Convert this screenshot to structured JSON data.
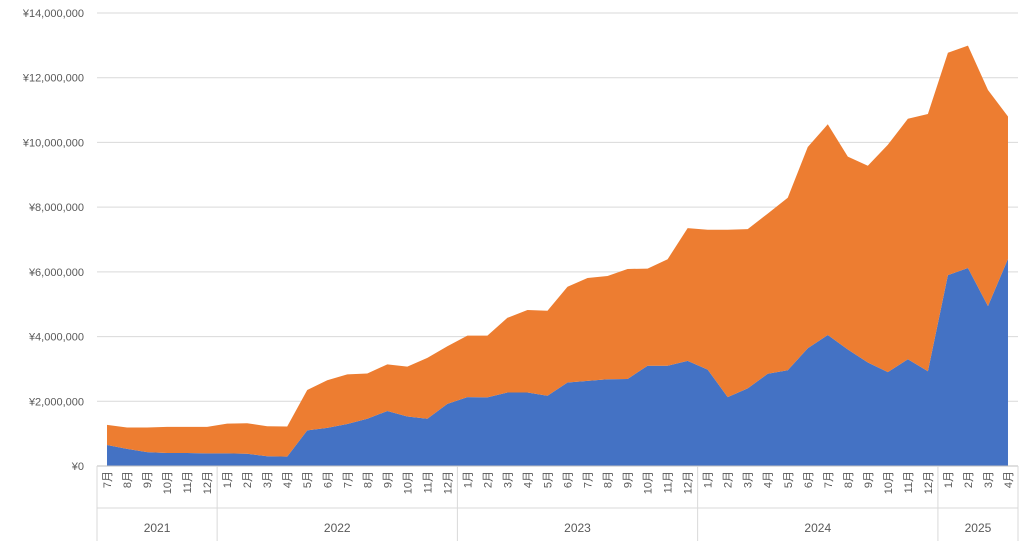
{
  "chart_data": {
    "type": "area",
    "stacked": true,
    "title": "",
    "xlabel": "",
    "ylabel": "",
    "ylim": [
      0,
      14000000
    ],
    "y_ticks": [
      0,
      2000000,
      4000000,
      6000000,
      8000000,
      10000000,
      12000000,
      14000000
    ],
    "y_tick_labels": [
      "¥0",
      "¥2,000,000",
      "¥4,000,000",
      "¥6,000,000",
      "¥8,000,000",
      "¥10,000,000",
      "¥12,000,000",
      "¥14,000,000"
    ],
    "grid": true,
    "legend": "none",
    "colors": [
      "#4472C4",
      "#ED7D31"
    ],
    "categories": [
      "7月",
      "8月",
      "9月",
      "10月",
      "11月",
      "12月",
      "1月",
      "2月",
      "3月",
      "4月",
      "5月",
      "6月",
      "7月",
      "8月",
      "9月",
      "10月",
      "11月",
      "12月",
      "1月",
      "2月",
      "3月",
      "4月",
      "5月",
      "6月",
      "7月",
      "8月",
      "9月",
      "10月",
      "11月",
      "12月",
      "1月",
      "2月",
      "3月",
      "4月",
      "5月",
      "6月",
      "7月",
      "8月",
      "9月",
      "10月",
      "11月",
      "12月",
      "1月",
      "2月",
      "3月",
      "4月"
    ],
    "year_groups": [
      {
        "label": "2021",
        "count": 6
      },
      {
        "label": "2022",
        "count": 12
      },
      {
        "label": "2023",
        "count": 12
      },
      {
        "label": "2024",
        "count": 12
      },
      {
        "label": "2025",
        "count": 4
      }
    ],
    "series": [
      {
        "values": [
          650000,
          530000,
          430000,
          400000,
          400000,
          390000,
          390000,
          380000,
          300000,
          290000,
          1100000,
          1180000,
          1300000,
          1460000,
          1700000,
          1530000,
          1460000,
          1920000,
          2130000,
          2120000,
          2270000,
          2270000,
          2170000,
          2580000,
          2630000,
          2680000,
          2690000,
          3100000,
          3100000,
          3250000,
          2980000,
          2130000,
          2400000,
          2850000,
          2960000,
          3640000,
          4050000,
          3600000,
          3200000,
          2900000,
          3300000,
          2930000,
          5900000,
          6120000,
          4940000,
          6400000
        ]
      },
      {
        "values": [
          620000,
          660000,
          760000,
          810000,
          810000,
          820000,
          920000,
          940000,
          930000,
          930000,
          1250000,
          1470000,
          1530000,
          1400000,
          1440000,
          1540000,
          1880000,
          1780000,
          1900000,
          1910000,
          2310000,
          2550000,
          2630000,
          2960000,
          3180000,
          3190000,
          3400000,
          3000000,
          3290000,
          4100000,
          4320000,
          5170000,
          4920000,
          4950000,
          5330000,
          6220000,
          6510000,
          5960000,
          6080000,
          7030000,
          7430000,
          7950000,
          6870000,
          6870000,
          6680000,
          4400000
        ]
      }
    ]
  }
}
